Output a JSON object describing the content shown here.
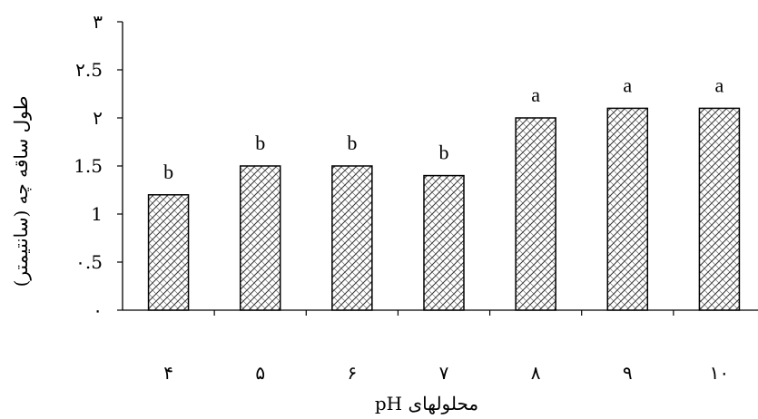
{
  "chart_data": {
    "type": "bar",
    "categories": [
      "۴",
      "۵",
      "۶",
      "۷",
      "۸",
      "۹",
      "۱۰"
    ],
    "values": [
      1.2,
      1.5,
      1.5,
      1.4,
      2.0,
      2.1,
      2.1
    ],
    "data_labels": [
      "b",
      "b",
      "b",
      "b",
      "a",
      "a",
      "a"
    ],
    "title": "",
    "xlabel": "محلولهای pH",
    "ylabel": "طول ساقه چه (سانتیمتر)",
    "ylim": [
      0,
      3
    ],
    "yticks": [
      0,
      0.5,
      1,
      1.5,
      2,
      2.5,
      3
    ],
    "ytick_labels": [
      "۰",
      "۰.5",
      "1",
      "1.5",
      "۲",
      "۲.5",
      "۳"
    ],
    "grid": false,
    "legend": "none",
    "bar_fill": "diagonal-hatch",
    "bar_color": "#ffffff",
    "bar_stroke": "#000000"
  }
}
